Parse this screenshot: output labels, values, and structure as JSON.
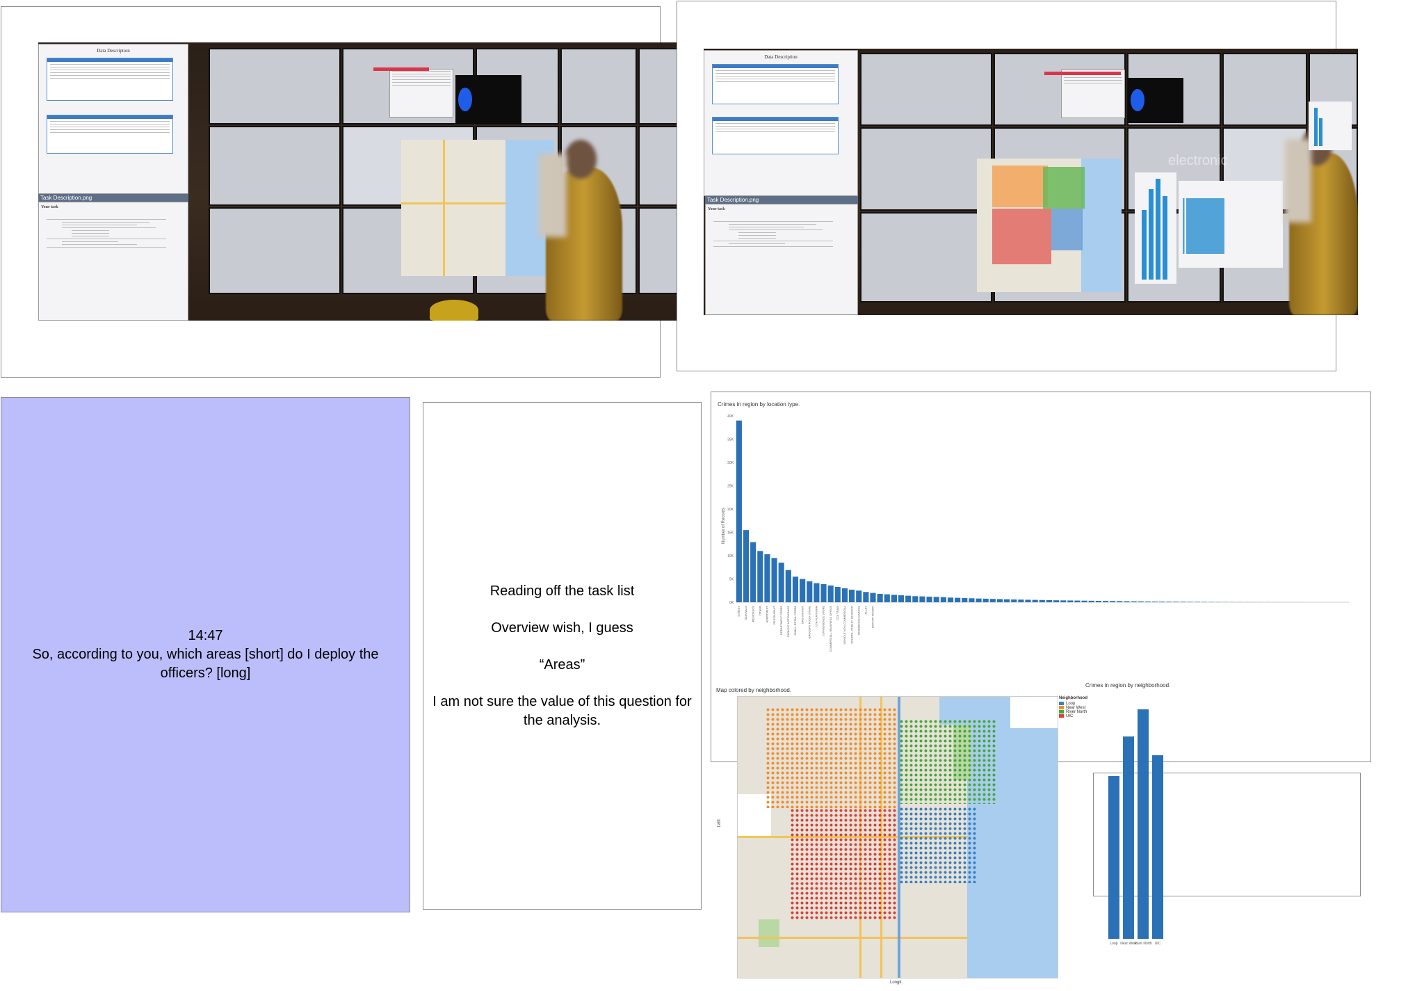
{
  "blue_panel": {
    "time": "14:47",
    "quote": "So, according to you, which areas [short] do I deploy the officers? [long]"
  },
  "notes": [
    "Reading off the task list",
    "Overview wish, I guess",
    "“Areas”",
    "I am not sure the value of this question for the analysis."
  ],
  "photos": {
    "left": {
      "task_window_title": "Task Description.png",
      "task_heading": "Your task",
      "doc_title": "Data Description"
    },
    "right": {
      "task_window_title": "Task Description.png",
      "task_heading": "Your task",
      "doc_title": "Data Description",
      "wall_logo": "electronic"
    }
  },
  "chart_data": [
    {
      "type": "bar",
      "title": "Crimes in region by location type.",
      "ylabel": "Number of Records",
      "yticks": [
        "0K",
        "5K",
        "10K",
        "15K",
        "20K",
        "25K",
        "30K",
        "35K",
        "40K"
      ],
      "ylim": [
        0,
        40000
      ],
      "categories": [
        "STREET",
        "SIDEWALK",
        "RESIDENCE",
        "OTHER",
        "APARTMENT",
        "RESTAURANT",
        "DEPARTMENT STORE",
        "PARKING LOT/GARAGE",
        "SMALL RETAIL STORE",
        "GAS STATION",
        "GROCERY FOOD STORE",
        "CTA PLATFORM",
        "CONVENIENCE STORE",
        "COMMERCIAL / BUSINESS OFFICE",
        "CTA TRAIN",
        "VEHICLE NON-COMMERCIAL",
        "SCHOOL, PUBLIC, BUILDING",
        "RESIDENCE-GARAGE",
        "ALLEY",
        "BAR OR TAVERN"
      ],
      "values": [
        39000,
        15500,
        12900,
        11000,
        10300,
        9500,
        8500,
        6900,
        5500,
        5000,
        4500,
        4100,
        3900,
        3600,
        3300,
        3000,
        2700,
        2500,
        2200,
        2000
      ],
      "tail_values": [
        1800,
        1700,
        1600,
        1500,
        1400,
        1300,
        1250,
        1200,
        1150,
        1100,
        1000,
        950,
        900,
        850,
        800,
        760,
        720,
        680,
        640,
        600,
        570,
        540,
        510,
        480,
        450,
        420,
        400,
        380,
        360,
        340,
        320,
        300,
        280,
        260,
        240,
        220,
        200,
        180,
        160,
        150,
        140,
        130,
        120,
        110,
        100,
        90,
        80,
        70,
        60,
        50,
        45,
        40,
        35,
        30,
        25,
        20,
        18,
        15,
        12,
        10,
        8,
        6,
        5,
        4,
        3,
        2,
        1
      ]
    },
    {
      "type": "bar",
      "title": "Crimes in region by neighborhood.",
      "categories": [
        "Loop",
        "Near West",
        "River North",
        "UIC"
      ],
      "values": [
        39000,
        48500,
        55000,
        44000
      ]
    }
  ],
  "map": {
    "title": "Map colored by neighborhood.",
    "ylabel": "Latit.",
    "xlabel": "Longit.",
    "legend_title": "Neighborhood",
    "legend": [
      {
        "label": "Loop",
        "color": "#3a7fc1"
      },
      {
        "label": "Near West",
        "color": "#f08c2c"
      },
      {
        "label": "River North",
        "color": "#47a63a"
      },
      {
        "label": "UIC",
        "color": "#d8403a"
      }
    ]
  }
}
